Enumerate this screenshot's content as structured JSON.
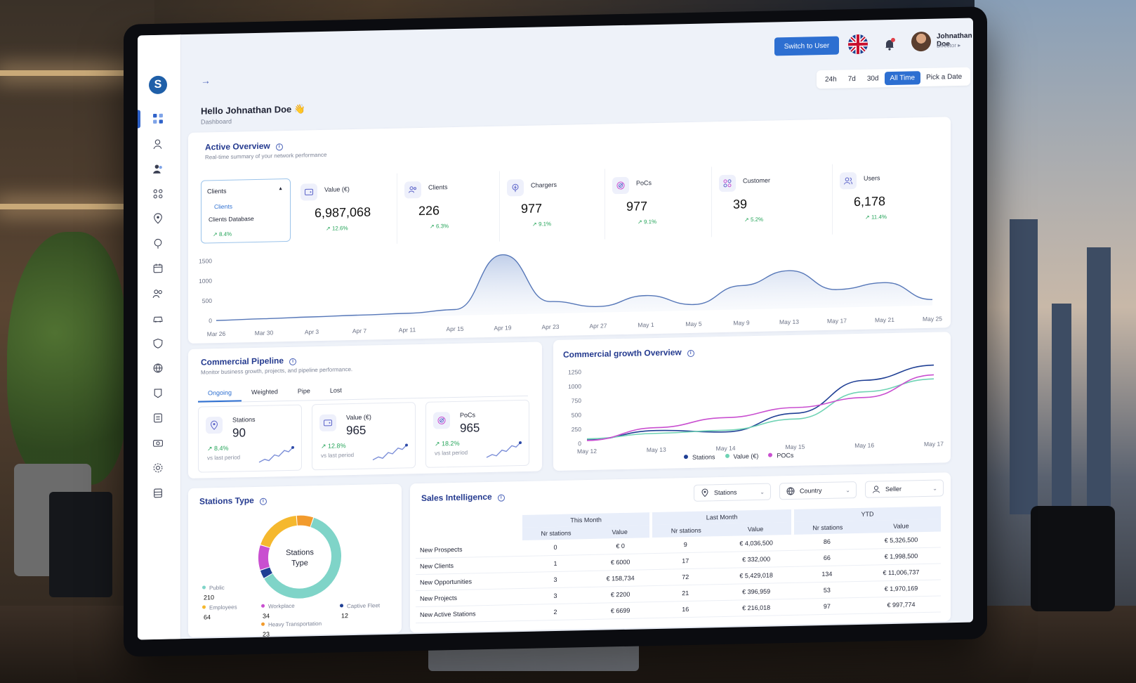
{
  "header": {
    "switch_user": "Switch to User",
    "user_name": "Johnathan Doe",
    "user_role": "Director",
    "time_filters": [
      "24h",
      "7d",
      "30d",
      "All Time",
      "Pick  a  Date"
    ],
    "active_time_filter": "All Time"
  },
  "page": {
    "greeting": "Hello Johnathan Doe",
    "greeting_emoji": "👋",
    "breadcrumb": "Dashboard"
  },
  "active_overview": {
    "title": "Active Overview",
    "subtitle": "Real-time summary of your network performance",
    "dropdown": {
      "selected": "Clients",
      "options": [
        "Clients",
        "Clients Database"
      ],
      "delta": "8.4%"
    },
    "kpis": [
      {
        "label": "Value (€)",
        "value": "6,987,068",
        "delta": "12.6%",
        "icon": "wallet-icon"
      },
      {
        "label": "Clients",
        "value": "226",
        "delta": "6.3%",
        "icon": "users-icon"
      },
      {
        "label": "Chargers",
        "value": "977",
        "delta": "9.1%",
        "icon": "charger-icon"
      },
      {
        "label": "PoCs",
        "value": "977",
        "delta": "9.1%",
        "icon": "target-icon"
      },
      {
        "label": "Customer",
        "value": "39",
        "delta": "5.2%",
        "icon": "customer-icon"
      },
      {
        "label": "Users",
        "value": "6,178",
        "delta": "11.4%",
        "icon": "user-group-icon"
      }
    ]
  },
  "commercial_pipeline": {
    "title": "Commercial Pipeline",
    "subtitle": "Monitor business growth, projects, and pipeline performance.",
    "tabs": [
      "Ongoing",
      "Weighted",
      "Pipe",
      "Lost"
    ],
    "active_tab": "Ongoing",
    "cards": [
      {
        "label": "Stations",
        "value": "90",
        "delta": "8.4%",
        "vs": "vs last period",
        "icon": "pin-icon"
      },
      {
        "label": "Value (€)",
        "value": "965",
        "delta": "12.8%",
        "vs": "vs last period",
        "icon": "wallet-icon"
      },
      {
        "label": "PoCs",
        "value": "965",
        "delta": "18.2%",
        "vs": "vs last period",
        "icon": "target-icon"
      }
    ]
  },
  "commercial_growth": {
    "title": "Commercial growth Overview"
  },
  "stations_type": {
    "title": "Stations Type",
    "center_label_1": "Stations",
    "center_label_2": "Type"
  },
  "sales_intelligence": {
    "title": "Sales Intelligence",
    "filters": [
      "Stations",
      "Country",
      "Seller"
    ],
    "groups": [
      "This Month",
      "Last Month",
      "YTD"
    ],
    "subheaders": [
      "Nr stations",
      "Value"
    ],
    "rows": [
      {
        "label": "New Prospects",
        "cells": [
          "0",
          "€ 0",
          "9",
          "€ 4,036,500",
          "86",
          "€ 5,326,500"
        ]
      },
      {
        "label": "New Clients",
        "cells": [
          "1",
          "€ 6000",
          "17",
          "€ 332,000",
          "66",
          "€ 1,998,500"
        ]
      },
      {
        "label": "New Opportunities",
        "cells": [
          "3",
          "€ 158,734",
          "72",
          "€ 5,429,018",
          "134",
          "€ 11,006,737"
        ]
      },
      {
        "label": "New Projects",
        "cells": [
          "3",
          "€ 2200",
          "21",
          "€ 396,959",
          "53",
          "€ 1,970,169"
        ]
      },
      {
        "label": "New Active Stations",
        "cells": [
          "2",
          "€ 6699",
          "16",
          "€ 216,018",
          "97",
          "€ 997,774"
        ]
      }
    ]
  },
  "colors": {
    "accent": "#2d6fd1",
    "title": "#243a8f",
    "positive": "#27a55b",
    "stations": "#1f3f94",
    "value": "#6fd3b4",
    "pocs": "#c94fd0"
  },
  "chart_data": [
    {
      "type": "area",
      "x": [
        "Mar 26",
        "Mar 30",
        "Apr 3",
        "Apr 7",
        "Apr 11",
        "Apr 15",
        "Apr 19",
        "Apr 23",
        "Apr 27",
        "May 1",
        "May 5",
        "May 9",
        "May 13",
        "May 17",
        "May 21",
        "May 25"
      ],
      "values": [
        0,
        20,
        40,
        60,
        80,
        150,
        1500,
        300,
        150,
        400,
        150,
        600,
        950,
        450,
        600,
        150
      ],
      "yticks": [
        0,
        500,
        1000,
        1500
      ],
      "ylim": [
        0,
        1800
      ]
    },
    {
      "type": "line",
      "x": [
        "May 12",
        "May 13",
        "May 14",
        "May 15",
        "May 16",
        "May 17"
      ],
      "yticks": [
        0,
        250,
        500,
        750,
        1000,
        1250
      ],
      "ylim": [
        0,
        1300
      ],
      "legend": "bottom",
      "series": [
        {
          "name": "Stations",
          "values": [
            60,
            200,
            150,
            450,
            1000,
            1240
          ]
        },
        {
          "name": "Value (€)",
          "values": [
            80,
            150,
            180,
            350,
            800,
            1000
          ]
        },
        {
          "name": "POCs",
          "values": [
            50,
            250,
            400,
            550,
            700,
            1070
          ]
        }
      ]
    },
    {
      "type": "pie",
      "labels": [
        "Public",
        "Employees",
        "Workplace",
        "Heavy Transportation",
        "Captive Fleet"
      ],
      "values": [
        210,
        64,
        34,
        23,
        12
      ],
      "colors": [
        "#7fd4c8",
        "#f5b82e",
        "#c94fd0",
        "#f29b2d",
        "#1f3f94"
      ]
    }
  ]
}
